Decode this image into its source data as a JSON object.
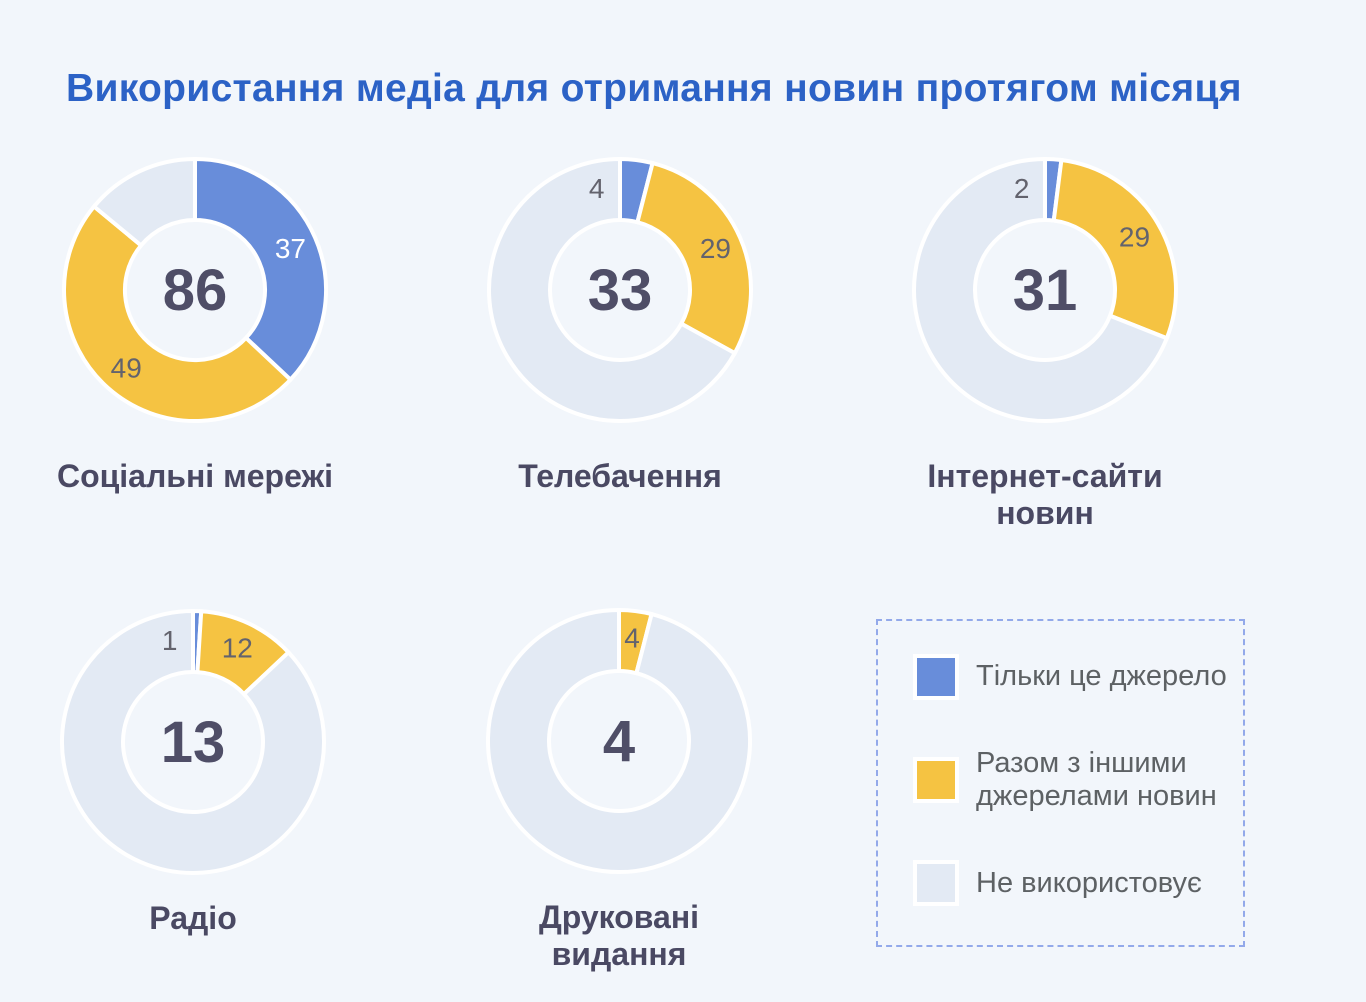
{
  "title": "Використання медіа для отримання новин протягом місяця",
  "colors": {
    "background": "#f2f6fb",
    "title": "#2c62c6",
    "center_number": "#4f4e67",
    "category_label": "#4a4963",
    "value_label": "#63636d",
    "value_label_on_blue": "#ffffff",
    "only_this_source": "#688dda",
    "with_other_sources": "#f5c342",
    "not_used": "#e3eaf4",
    "legend_border": "#93a9ea",
    "legend_text": "#5d6164"
  },
  "legend": {
    "items": [
      {
        "key": "only_this_source",
        "label": "Тільки це джерело",
        "color": "#688dda"
      },
      {
        "key": "with_other_sources",
        "label": "Разом з іншими\nджерелами новин",
        "color": "#f5c342"
      },
      {
        "key": "not_used",
        "label": "Не використовує",
        "color": "#e3eaf4"
      }
    ]
  },
  "chart_data": {
    "type": "pie",
    "subtype": "donut",
    "unit": "percent",
    "title": "Використання медіа для отримання новин протягом місяця",
    "series_names": [
      "Тільки це джерело",
      "Разом з іншими джерелами новин",
      "Не використовує"
    ],
    "charts": [
      {
        "category": "Соціальні мережі",
        "category_display": "Соціальні мережі",
        "total": 86,
        "only_this_source": 37,
        "with_other_sources": 49,
        "not_used": 14
      },
      {
        "category": "Телебачення",
        "category_display": "Телебачення",
        "total": 33,
        "only_this_source": 4,
        "with_other_sources": 29,
        "not_used": 67
      },
      {
        "category": "Інтернет-сайти новин",
        "category_display": "Інтернет-сайти\nновин",
        "total": 31,
        "only_this_source": 2,
        "with_other_sources": 29,
        "not_used": 69
      },
      {
        "category": "Радіо",
        "category_display": "Радіо",
        "total": 13,
        "only_this_source": 1,
        "with_other_sources": 12,
        "not_used": 87
      },
      {
        "category": "Друковані видання",
        "category_display": "Друковані\nвидання",
        "total": 4,
        "only_this_source": 0,
        "with_other_sources": 4,
        "not_used": 96
      }
    ]
  }
}
